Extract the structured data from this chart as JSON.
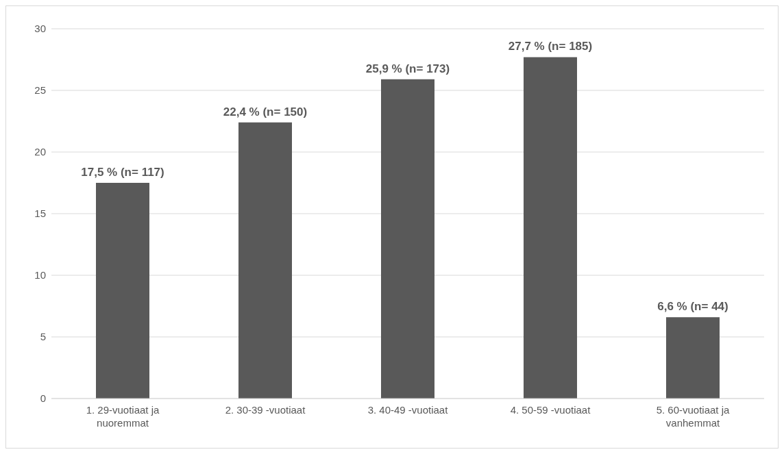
{
  "chart_data": {
    "type": "bar",
    "categories": [
      "1. 29-vuotiaat ja nuoremmat",
      "2. 30-39 -vuotiaat",
      "3. 40-49 -vuotiaat",
      "4. 50-59 -vuotiaat",
      "5. 60-vuotiaat ja vanhemmat"
    ],
    "values": [
      17.5,
      22.4,
      25.9,
      27.7,
      6.6
    ],
    "value_labels": [
      "17,5 % (n= 117)",
      "22,4 % (n= 150)",
      "25,9 % (n= 173)",
      "27,7 % (n= 185)",
      "6,6 % (n= 44)"
    ],
    "color": "#595959",
    "ylim": [
      0,
      30
    ],
    "yticks": [
      0,
      5,
      10,
      15,
      20,
      25,
      30
    ],
    "grid": "y"
  }
}
